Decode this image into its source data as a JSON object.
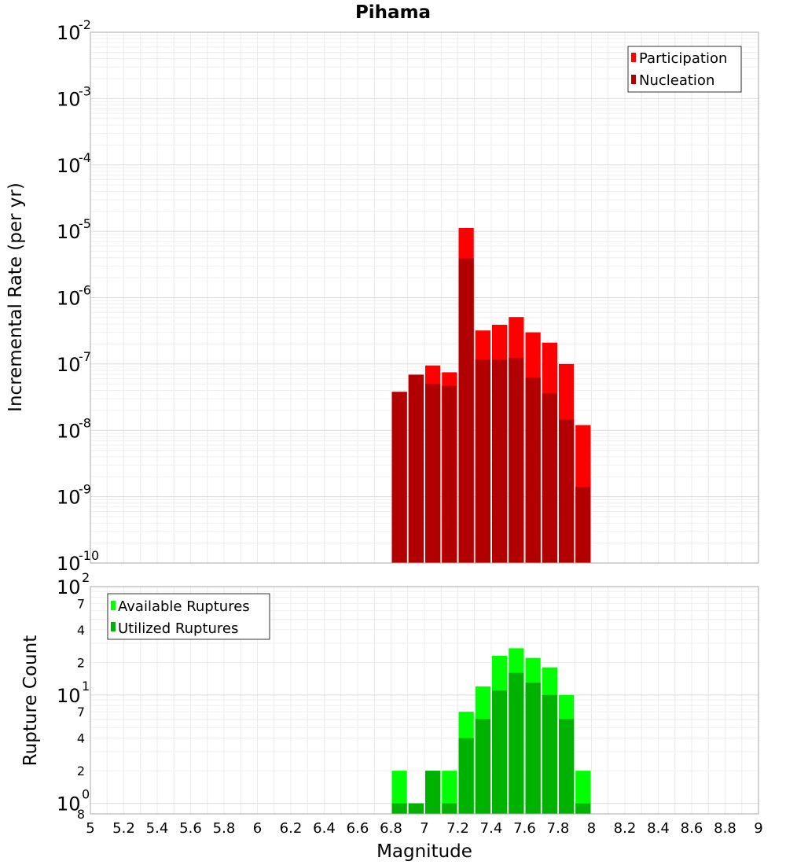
{
  "chart_data": [
    {
      "type": "bar",
      "title": "Pihama",
      "xlabel": "",
      "ylabel": "Incremental Rate (per yr)",
      "y_scale": "log",
      "ylim": [
        1e-10,
        0.01
      ],
      "xlim": [
        5,
        9
      ],
      "y_ticks": [
        {
          "base": "10",
          "exp": "-10",
          "value": 1e-10
        },
        {
          "base": "10",
          "exp": "-9",
          "value": 1e-09
        },
        {
          "base": "10",
          "exp": "-8",
          "value": 1e-08
        },
        {
          "base": "10",
          "exp": "-7",
          "value": 1e-07
        },
        {
          "base": "10",
          "exp": "-6",
          "value": 1e-06
        },
        {
          "base": "10",
          "exp": "-5",
          "value": 1e-05
        },
        {
          "base": "10",
          "exp": "-4",
          "value": 0.0001
        },
        {
          "base": "10",
          "exp": "-3",
          "value": 0.001
        },
        {
          "base": "10",
          "exp": "-2",
          "value": 0.01
        }
      ],
      "legend_position": "top-right",
      "bin_width": 0.1,
      "x": [
        6.85,
        6.95,
        7.05,
        7.15,
        7.25,
        7.35,
        7.45,
        7.55,
        7.65,
        7.75,
        7.85,
        7.95
      ],
      "series": [
        {
          "name": "Participation",
          "color": "#ff0000",
          "values": [
            3.8e-08,
            6.9e-08,
            9.5e-08,
            7.5e-08,
            1.12e-05,
            3.2e-07,
            3.9e-07,
            5.1e-07,
            3e-07,
            2.1e-07,
            1e-07,
            1.2e-08
          ]
        },
        {
          "name": "Nucleation",
          "color": "#b20000",
          "values": [
            3.8e-08,
            6.9e-08,
            5e-08,
            4.7e-08,
            3.9e-06,
            1.17e-07,
            1.16e-07,
            1.24e-07,
            6.2e-08,
            3.6e-08,
            1.45e-08,
            1.4e-09
          ]
        }
      ]
    },
    {
      "type": "bar",
      "xlabel": "Magnitude",
      "ylabel": "Rupture Count",
      "y_scale": "log",
      "ylim": [
        0.8,
        100
      ],
      "xlim": [
        5,
        9
      ],
      "y_major_ticks": [
        {
          "base": "10",
          "exp": "0",
          "value": 1
        },
        {
          "base": "10",
          "exp": "1",
          "value": 10
        },
        {
          "base": "10",
          "exp": "2",
          "value": 100
        }
      ],
      "y_minor_ticks": [
        {
          "label": "8",
          "value": 0.8
        },
        {
          "label": "2",
          "value": 2
        },
        {
          "label": "4",
          "value": 4
        },
        {
          "label": "7",
          "value": 7
        },
        {
          "label": "2",
          "value": 20
        },
        {
          "label": "4",
          "value": 40
        },
        {
          "label": "7",
          "value": 70
        }
      ],
      "x_ticks": [
        "5",
        "5.2",
        "5.4",
        "5.6",
        "5.8",
        "6",
        "6.2",
        "6.4",
        "6.6",
        "6.8",
        "7",
        "7.2",
        "7.4",
        "7.6",
        "7.8",
        "8",
        "8.2",
        "8.4",
        "8.6",
        "8.8",
        "9"
      ],
      "legend_position": "top-left",
      "bin_width": 0.1,
      "x": [
        6.85,
        6.95,
        7.05,
        7.15,
        7.25,
        7.35,
        7.45,
        7.55,
        7.65,
        7.75,
        7.85,
        7.95
      ],
      "series": [
        {
          "name": "Available Ruptures",
          "color": "#00ff00",
          "values": [
            2,
            1,
            2,
            2,
            7,
            12,
            23,
            27,
            22,
            18,
            10,
            2
          ]
        },
        {
          "name": "Utilized Ruptures",
          "color": "#00b200",
          "values": [
            1,
            1,
            2,
            1,
            4,
            6,
            11,
            16,
            13,
            10,
            6,
            1
          ]
        }
      ]
    }
  ]
}
